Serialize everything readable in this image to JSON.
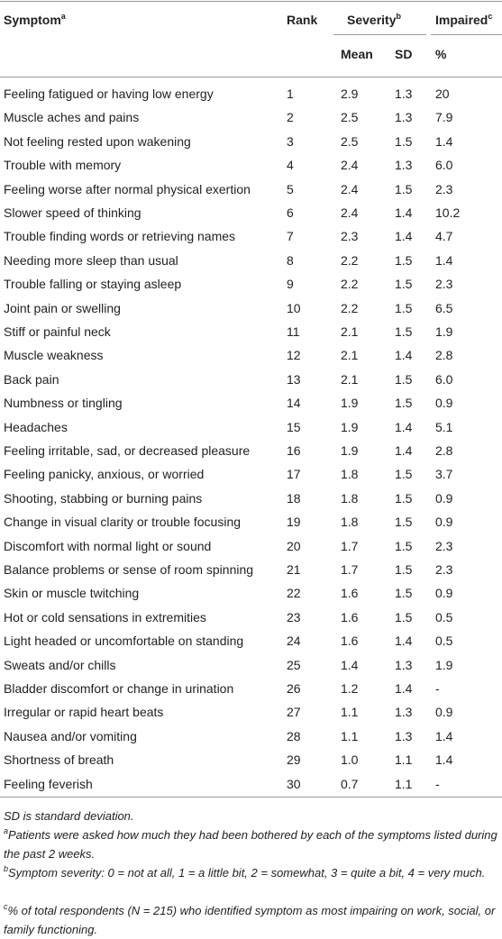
{
  "table": {
    "header": {
      "symptom": "Symptom",
      "symptom_note": "a",
      "rank": "Rank",
      "severity": "Severity",
      "severity_note": "b",
      "impaired": "Impaired",
      "impaired_note": "c",
      "mean": "Mean",
      "sd": "SD",
      "percent": "%"
    },
    "rows": [
      [
        "Feeling fatigued or having low energy",
        "1",
        "2.9",
        "1.3",
        "20"
      ],
      [
        "Muscle aches and pains",
        "2",
        "2.5",
        "1.3",
        "7.9"
      ],
      [
        "Not feeling rested upon wakening",
        "3",
        "2.5",
        "1.5",
        "1.4"
      ],
      [
        "Trouble with memory",
        "4",
        "2.4",
        "1.3",
        "6.0"
      ],
      [
        "Feeling worse after normal physical exertion",
        "5",
        "2.4",
        "1.5",
        "2.3"
      ],
      [
        "Slower speed of thinking",
        "6",
        "2.4",
        "1.4",
        "10.2"
      ],
      [
        "Trouble finding words or retrieving names",
        "7",
        "2.3",
        "1.4",
        "4.7"
      ],
      [
        "Needing more sleep than usual",
        "8",
        "2.2",
        "1.5",
        "1.4"
      ],
      [
        "Trouble falling or staying asleep",
        "9",
        "2.2",
        "1.5",
        "2.3"
      ],
      [
        "Joint pain or swelling",
        "10",
        "2.2",
        "1.5",
        "6.5"
      ],
      [
        "Stiff or painful neck",
        "11",
        "2.1",
        "1.5",
        "1.9"
      ],
      [
        "Muscle weakness",
        "12",
        "2.1",
        "1.4",
        "2.8"
      ],
      [
        "Back pain",
        "13",
        "2.1",
        "1.5",
        "6.0"
      ],
      [
        "Numbness or tingling",
        "14",
        "1.9",
        "1.5",
        "0.9"
      ],
      [
        "Headaches",
        "15",
        "1.9",
        "1.4",
        "5.1"
      ],
      [
        "Feeling irritable, sad, or decreased pleasure",
        "16",
        "1.9",
        "1.4",
        "2.8"
      ],
      [
        "Feeling panicky, anxious, or worried",
        "17",
        "1.8",
        "1.5",
        "3.7"
      ],
      [
        "Shooting, stabbing or burning pains",
        "18",
        "1.8",
        "1.5",
        "0.9"
      ],
      [
        "Change in visual clarity or trouble focusing",
        "19",
        "1.8",
        "1.5",
        "0.9"
      ],
      [
        "Discomfort with normal light or sound",
        "20",
        "1.7",
        "1.5",
        "2.3"
      ],
      [
        "Balance problems or sense of room spinning",
        "21",
        "1.7",
        "1.5",
        "2.3"
      ],
      [
        "Skin or muscle twitching",
        "22",
        "1.6",
        "1.5",
        "0.9"
      ],
      [
        "Hot or cold sensations in extremities",
        "23",
        "1.6",
        "1.5",
        "0.5"
      ],
      [
        "Light headed or uncomfortable on standing",
        "24",
        "1.6",
        "1.4",
        "0.5"
      ],
      [
        "Sweats and/or chills",
        "25",
        "1.4",
        "1.3",
        "1.9"
      ],
      [
        "Bladder discomfort or change in urination",
        "26",
        "1.2",
        "1.4",
        "-"
      ],
      [
        "Irregular or rapid heart beats",
        "27",
        "1.1",
        "1.3",
        "0.9"
      ],
      [
        "Nausea and/or vomiting",
        "28",
        "1.1",
        "1.3",
        "1.4"
      ],
      [
        "Shortness of breath",
        "29",
        "1.0",
        "1.1",
        "1.4"
      ],
      [
        "Feeling feverish",
        "30",
        "0.7",
        "1.1",
        "-"
      ]
    ]
  },
  "footnotes": [
    {
      "text": "SD is standard deviation."
    },
    {
      "mark": "a",
      "text": "Patients were asked how much they had been bothered by each of the symptoms listed during the past 2 weeks."
    },
    {
      "mark": "b",
      "text": "Symptom severity: 0 = not at all, 1 = a little bit, 2 = somewhat, 3 = quite a bit, 4 = very much."
    },
    {
      "mark": "c",
      "text": "% of total respondents (N = 215) who identified symptom as most impairing on work, social, or family functioning."
    }
  ]
}
